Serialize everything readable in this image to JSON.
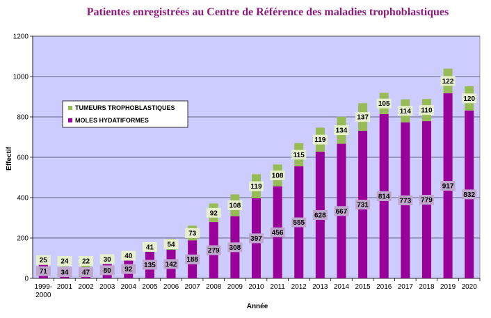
{
  "chart_data": {
    "type": "bar",
    "stacked": true,
    "title": "Patientes enregistrées au Centre de Référence des maladies trophoblastiques",
    "xlabel": "Année",
    "ylabel": "Effectif",
    "ylim": [
      0,
      1200
    ],
    "yticks": [
      0,
      200,
      400,
      600,
      800,
      1000,
      1200
    ],
    "categories": [
      "1999-\n2000",
      "2001",
      "2002",
      "2003",
      "2004",
      "2005",
      "2006",
      "2007",
      "2008",
      "2009",
      "2010",
      "2011",
      "2012",
      "2013",
      "2014",
      "2015",
      "2016",
      "2017",
      "2018",
      "2019",
      "2020"
    ],
    "series": [
      {
        "name": "MOLES HYDATIFORMES",
        "color": "#990099",
        "label_bg": "#c0a8cc",
        "values": [
          71,
          34,
          47,
          80,
          92,
          135,
          142,
          188,
          279,
          308,
          397,
          456,
          555,
          628,
          667,
          731,
          814,
          773,
          779,
          917,
          832
        ]
      },
      {
        "name": "TUMEURS TROPHOBLASTIQUES",
        "color": "#99bb55",
        "label_bg": "#e6f0cc",
        "values": [
          25,
          24,
          22,
          30,
          40,
          41,
          54,
          73,
          92,
          108,
          119,
          108,
          115,
          119,
          134,
          137,
          105,
          114,
          110,
          122,
          120
        ]
      }
    ],
    "legend_position": "upper-left",
    "plot_background": "#ccccff",
    "grid": "horizontal"
  }
}
